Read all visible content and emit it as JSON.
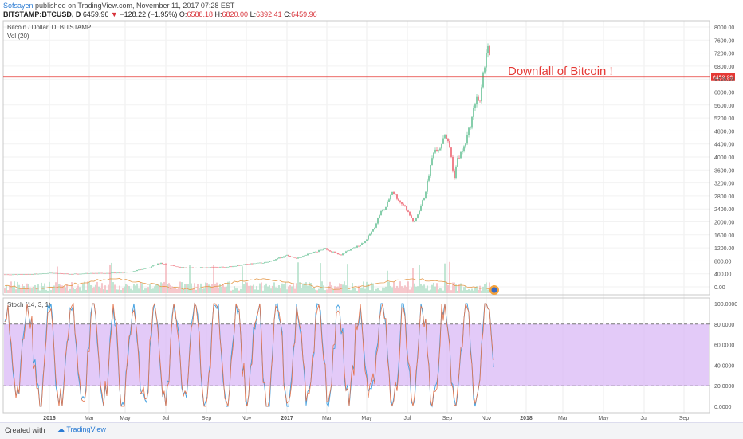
{
  "header": {
    "user": "Sofsayen",
    "published": "published on TradingView.com, November 11, 2017 07:28 EST",
    "symbol": "BITSTAMP:BTCUSD, D",
    "last": "6459.96",
    "down_arrow": "▼",
    "change": "−128.22 (−1.95%)",
    "o_label": "O:",
    "o_val": "6588.18",
    "h_label": "H:",
    "h_val": "6820.00",
    "l_label": "L:",
    "l_val": "6392.41",
    "c_label": "C:",
    "c_val": "6459.96"
  },
  "pane_main": {
    "legend": "Bitcoin / Dollar, D, BITSTAMP",
    "vol_label": "Vol (20)",
    "annotation": "Downfall of Bitcoin !",
    "price_label": "6459.96",
    "hline_color": "#e53935"
  },
  "pane_stoch": {
    "legend": "Stoch (14, 3, 1)",
    "fill_color": "#d9b8f5"
  },
  "footer": {
    "created_with": "Created with",
    "brand": "TradingView"
  },
  "chart_data": [
    {
      "type": "line",
      "title": "Bitcoin / Dollar, D, BITSTAMP",
      "subtitle": "Vol (20)",
      "x_ticks": [
        "2016",
        "Mar",
        "May",
        "Jul",
        "Sep",
        "Nov",
        "2017",
        "Mar",
        "May",
        "Jul",
        "Sep",
        "Nov",
        "2018",
        "Mar",
        "May",
        "Jul",
        "Sep"
      ],
      "y_ticks": [
        "8000.00",
        "7600.00",
        "7200.00",
        "6800.00",
        "6400.00",
        "6000.00",
        "5600.00",
        "5200.00",
        "4800.00",
        "4400.00",
        "4000.00",
        "3600.00",
        "3200.00",
        "2800.00",
        "2400.00",
        "2000.00",
        "1600.00",
        "1200.00",
        "800.00",
        "400.00",
        "0.00"
      ],
      "ylim": [
        0,
        8000
      ],
      "series": [
        {
          "name": "BTCUSD",
          "x": [
            "2015-12-01",
            "2016-01-01",
            "2016-02-01",
            "2016-03-01",
            "2016-04-01",
            "2016-05-01",
            "2016-06-01",
            "2016-06-20",
            "2016-07-01",
            "2016-08-01",
            "2016-09-01",
            "2016-10-01",
            "2016-11-01",
            "2016-12-01",
            "2017-01-01",
            "2017-01-15",
            "2017-02-01",
            "2017-03-01",
            "2017-03-25",
            "2017-04-01",
            "2017-04-20",
            "2017-05-01",
            "2017-05-15",
            "2017-05-25",
            "2017-06-01",
            "2017-06-12",
            "2017-06-25",
            "2017-07-01",
            "2017-07-16",
            "2017-08-01",
            "2017-08-15",
            "2017-08-25",
            "2017-09-01",
            "2017-09-10",
            "2017-09-15",
            "2017-09-20",
            "2017-10-01",
            "2017-10-12",
            "2017-10-20",
            "2017-10-25",
            "2017-11-01",
            "2017-11-05",
            "2017-11-08",
            "2017-11-10",
            "2017-11-11"
          ],
          "values": [
            380,
            430,
            390,
            415,
            420,
            450,
            580,
            740,
            670,
            580,
            600,
            610,
            700,
            750,
            970,
            860,
            990,
            1180,
            960,
            1080,
            1250,
            1400,
            1800,
            2300,
            2400,
            2950,
            2600,
            2500,
            1950,
            2800,
            4200,
            4300,
            4750,
            4200,
            3300,
            3900,
            4300,
            5100,
            5900,
            5600,
            6800,
            7400,
            7450,
            6600,
            6460
          ]
        }
      ]
    },
    {
      "type": "line",
      "title": "Stoch (14, 3, 1)",
      "y_ticks": [
        "100.0000",
        "80.0000",
        "60.0000",
        "40.0000",
        "20.0000",
        "0.0000"
      ],
      "ylim": [
        0,
        100
      ],
      "bands": [
        20,
        80
      ]
    }
  ]
}
